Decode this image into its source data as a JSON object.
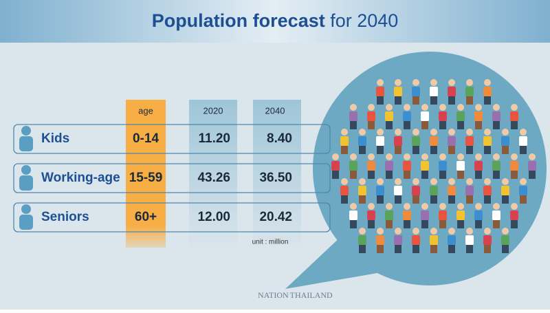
{
  "header": {
    "title_main": "Population forecast",
    "title_rest": "for 2040"
  },
  "table": {
    "columns": [
      "age",
      "2020",
      "2040"
    ],
    "rows": [
      {
        "label": "Kids",
        "age": "0-14",
        "y2020": "11.20",
        "y2040": "8.40"
      },
      {
        "label": "Working-age",
        "age": "15-59",
        "y2020": "43.26",
        "y2040": "36.50"
      },
      {
        "label": "Seniors",
        "age": "60+",
        "y2020": "12.00",
        "y2040": "20.42"
      }
    ],
    "unit": "unit : million"
  },
  "footer": {
    "logo_left": "NATION",
    "logo_right": "THAILAND"
  }
}
